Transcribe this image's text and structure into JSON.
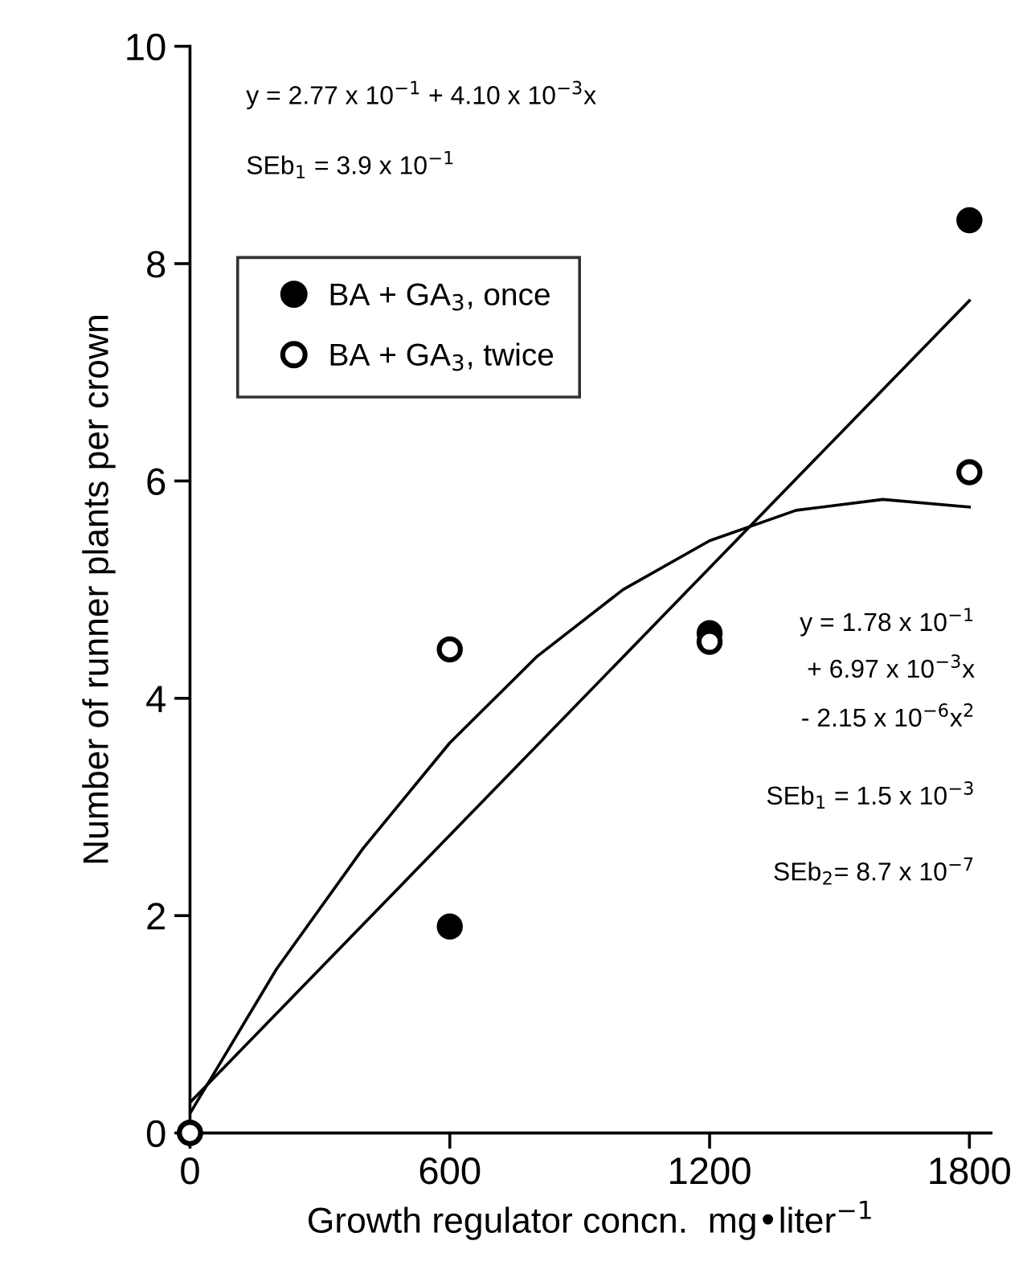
{
  "chart_data": {
    "type": "scatter",
    "xlabel": "Growth regulator concn.  mg•liter$^{−1}$",
    "ylabel": "Number of runner plants per crown",
    "x": [
      0,
      600,
      1200,
      1800
    ],
    "series": [
      {
        "name": "BA + GA$_{3}$, once",
        "color": "#000000",
        "marker": "circle",
        "values": [
          0,
          1.9,
          4.6,
          8.4
        ]
      },
      {
        "name": "BA + GA$_{3}$, twice",
        "color": "#000000",
        "marker": "circle",
        "values": [
          0,
          4.45,
          4.52,
          6.08
        ]
      },
      {
        "type": "line",
        "color": "#000000",
        "x": [
          0,
          1800
        ],
        "values": [
          0.28,
          7.66
        ]
      },
      {
        "type": "line",
        "color": "#000000",
        "x": [
          0,
          200,
          400,
          600,
          800,
          1000,
          1200,
          1400,
          1600,
          1800
        ],
        "values": [
          0.18,
          1.51,
          2.62,
          3.59,
          4.38,
          5.0,
          5.45,
          5.73,
          5.83,
          5.76
        ]
      }
    ],
    "xlim": [
      0,
      1850
    ],
    "ylim": [
      0,
      10
    ],
    "xticks": [
      0,
      600,
      1200,
      1800
    ],
    "yticks": [
      0,
      2,
      4,
      6,
      8,
      10
    ],
    "grid": false,
    "legend": "top left",
    "marker": "none",
    "line_style": "solid",
    "annotations": [
      "y = 2.77 x 10$^{−1}$ + 4.10 x 10$^{−3}$x",
      "SEb$_{1}$ = 3.9 x 10$^{−1}$",
      "y = 1.78 x 10$^{−1}$",
      "+ 6.97 x 10$^{−3}$x",
      "- 2.15 x 10$^{−6}$x$^{2}$",
      "SEb$_{1}$ = 1.5 x 10$^{−3}$",
      "SEb$_{2}$= 8.7 x 10$^{−7}$"
    ]
  }
}
